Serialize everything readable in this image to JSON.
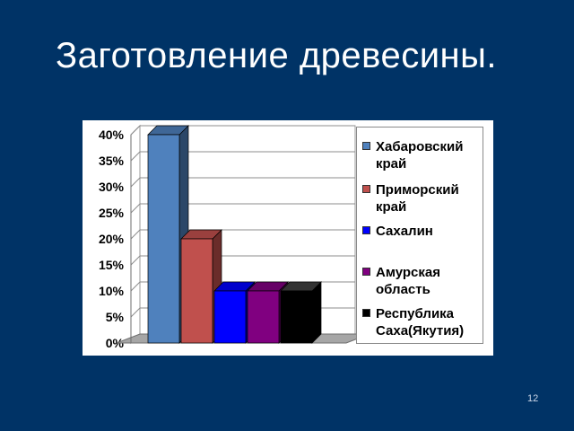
{
  "slide": {
    "title": "Заготовление древесины.",
    "page_number": "12"
  },
  "chart_data": {
    "type": "bar",
    "title": "",
    "xlabel": "",
    "ylabel": "",
    "ylim": [
      0,
      40
    ],
    "yticks": [
      "0%",
      "5%",
      "10%",
      "15%",
      "20%",
      "25%",
      "30%",
      "35%",
      "40%"
    ],
    "ytick_values": [
      0,
      5,
      10,
      15,
      20,
      25,
      30,
      35,
      40
    ],
    "grid": true,
    "legend_position": "right",
    "series": [
      {
        "name": "Хабаровский край",
        "values": [
          40
        ],
        "color": "#4f81bd"
      },
      {
        "name": "Приморский край",
        "values": [
          20
        ],
        "color": "#c0504d"
      },
      {
        "name": "Сахалин",
        "values": [
          10
        ],
        "color": "#0000ff"
      },
      {
        "name": "Амурская область",
        "values": [
          10
        ],
        "color": "#800080"
      },
      {
        "name": "Республика Саха(Якутия)",
        "values": [
          10
        ],
        "color": "#000000"
      }
    ]
  }
}
